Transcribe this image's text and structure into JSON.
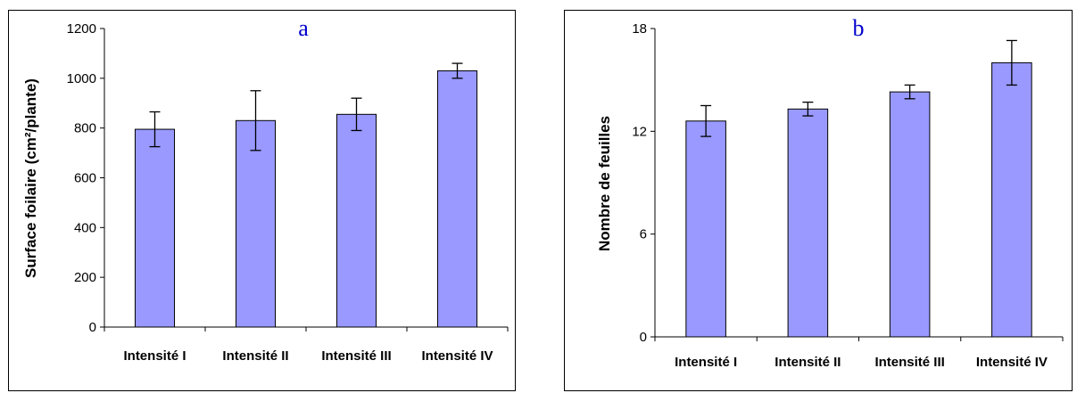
{
  "chart_data": [
    {
      "type": "bar",
      "panel_label": "a",
      "categories": [
        "Intensité I",
        "Intensité II",
        "Intensité III",
        "Intensité IV"
      ],
      "values": [
        795,
        830,
        855,
        1030
      ],
      "error": [
        70,
        120,
        65,
        30
      ],
      "ylabel": "Surface foilaire (cm²/plante)",
      "xlabel": "",
      "ylim": [
        0,
        1200
      ],
      "yticks": [
        "0",
        "200",
        "400",
        "600",
        "800",
        "1000",
        "1200"
      ],
      "grid": false,
      "legend": "none",
      "bar_color": "#9999ff",
      "label_color": "#0000cc"
    },
    {
      "type": "bar",
      "panel_label": "b",
      "categories": [
        "Intensité I",
        "Intensité II",
        "Intensité III",
        "Intensité IV"
      ],
      "values": [
        12.6,
        13.3,
        14.3,
        16.0
      ],
      "error": [
        0.9,
        0.4,
        0.4,
        1.3
      ],
      "ylabel": "Nombre de feuilles",
      "xlabel": "",
      "ylim": [
        0,
        18
      ],
      "yticks": [
        "0",
        "6",
        "12",
        "18"
      ],
      "grid": false,
      "legend": "none",
      "bar_color": "#9999ff",
      "label_color": "#0000cc"
    }
  ]
}
